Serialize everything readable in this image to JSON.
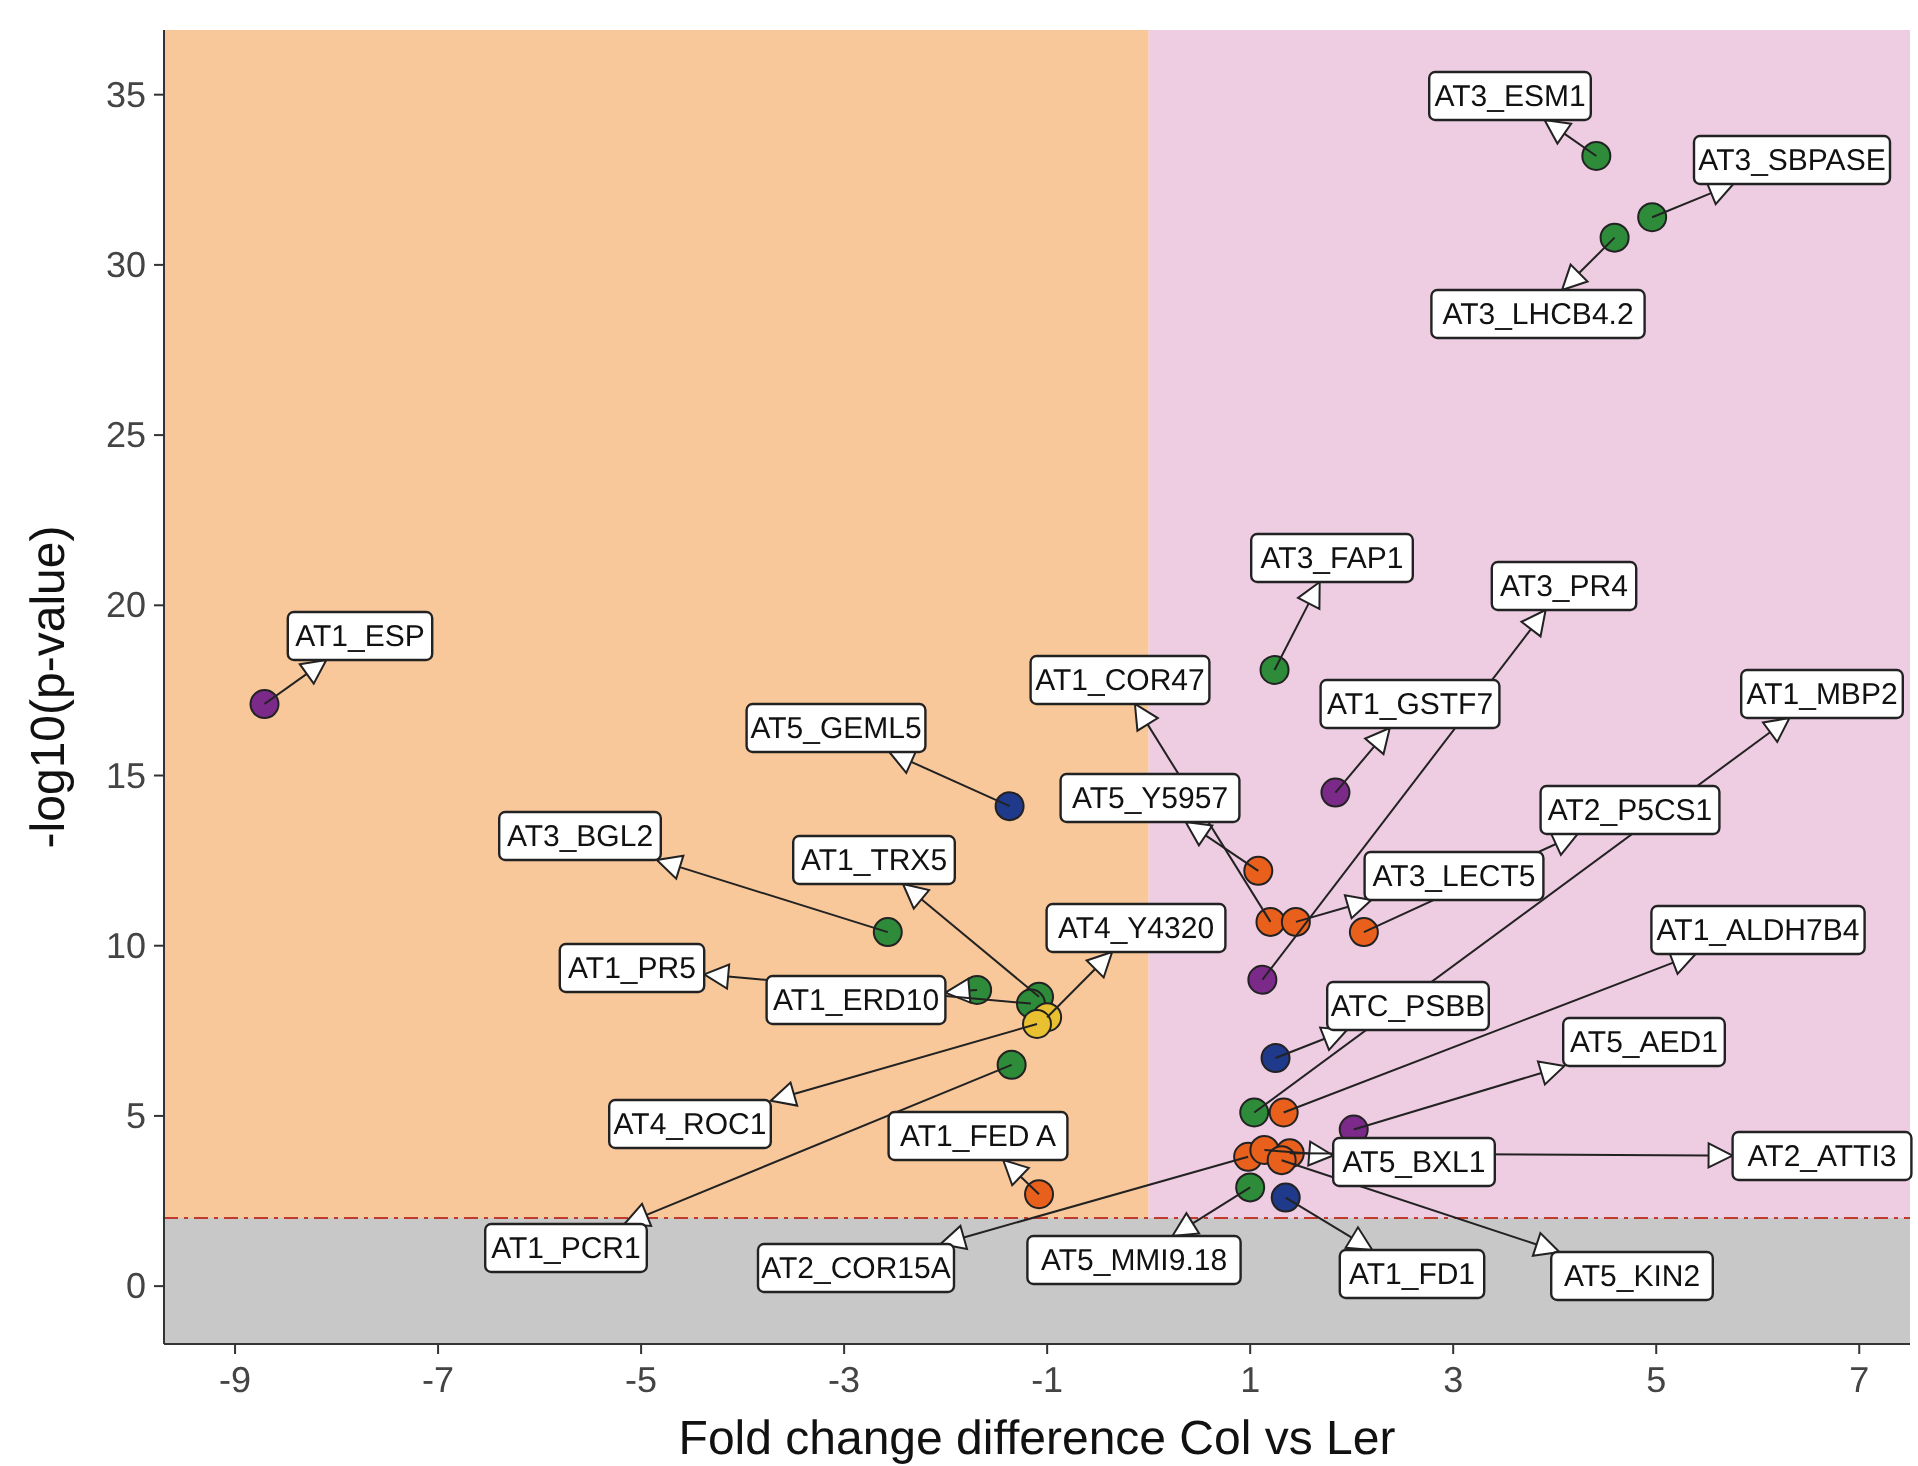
{
  "chart_data": {
    "type": "scatter",
    "xlabel": "Fold change difference Col vs Ler",
    "ylabel": "-log10(p-value)",
    "xlim": [
      -9.7,
      7.5
    ],
    "ylim": [
      -1.7,
      36.9
    ],
    "xticks": [
      -9,
      -7,
      -5,
      -3,
      -1,
      1,
      3,
      5,
      7
    ],
    "yticks": [
      0,
      5,
      10,
      15,
      20,
      25,
      30,
      35
    ],
    "grid": false,
    "marker": "circle",
    "bands": [
      {
        "axis": "x",
        "from": -9.7,
        "to": 0,
        "color": "#f9c89a"
      },
      {
        "axis": "x",
        "from": 0,
        "to": 7.5,
        "color": "#eecce2"
      },
      {
        "axis": "y",
        "from": -1.7,
        "to": 2,
        "color": "#c8c8c8"
      }
    ],
    "ref_lines": [
      {
        "axis": "y",
        "value": 2,
        "color": "#c0392b",
        "line_style": "dashed"
      }
    ],
    "series": [
      {
        "color": "#2e8b3a",
        "x": [
          4.41,
          4.96,
          4.59,
          1.24,
          1.04,
          1.0,
          -2.57,
          -1.69,
          -1.08,
          -1.16,
          -1.35
        ],
        "values": [
          33.2,
          31.4,
          30.8,
          18.1,
          5.1,
          2.9,
          10.4,
          8.7,
          8.5,
          8.3,
          6.5
        ]
      },
      {
        "color": "#7b2a8a",
        "x": [
          -8.71,
          1.84,
          1.12,
          2.02
        ],
        "values": [
          17.1,
          14.5,
          9.0,
          4.6
        ]
      },
      {
        "color": "#1f3a8a",
        "x": [
          -1.37,
          1.25,
          1.35
        ],
        "values": [
          14.1,
          6.7,
          2.6
        ]
      },
      {
        "color": "#e8601c",
        "x": [
          1.08,
          1.2,
          1.45,
          2.12,
          1.33,
          0.98,
          1.14,
          1.39,
          1.31,
          -1.08
        ],
        "values": [
          12.2,
          10.7,
          10.7,
          10.4,
          5.1,
          3.8,
          4.0,
          3.9,
          3.7,
          2.7
        ]
      },
      {
        "color": "#e8c030",
        "x": [
          -1.0,
          -1.1
        ],
        "values": [
          7.9,
          7.7
        ]
      }
    ],
    "annotations": [
      {
        "text": "AT3_ESM1",
        "x": 4.41,
        "y": 33.2
      },
      {
        "text": "AT3_SBPASE",
        "x": 4.96,
        "y": 31.4
      },
      {
        "text": "AT3_LHCB4.2",
        "x": 4.59,
        "y": 30.8
      },
      {
        "text": "AT3_FAP1",
        "x": 1.24,
        "y": 18.1
      },
      {
        "text": "AT1_MBP2",
        "x": 1.04,
        "y": 5.1
      },
      {
        "text": "AT5_MMI9.18",
        "x": 1.0,
        "y": 2.9
      },
      {
        "text": "AT3_BGL2",
        "x": -2.57,
        "y": 10.4
      },
      {
        "text": "AT1_ERD10",
        "x": -1.69,
        "y": 8.7
      },
      {
        "text": "AT1_TRX5",
        "x": -1.08,
        "y": 8.5
      },
      {
        "text": "AT1_PR5",
        "x": -1.16,
        "y": 8.3
      },
      {
        "text": "AT1_PCR1",
        "x": -1.35,
        "y": 6.5
      },
      {
        "text": "AT1_ESP",
        "x": -8.71,
        "y": 17.1
      },
      {
        "text": "AT1_GSTF7",
        "x": 1.84,
        "y": 14.5
      },
      {
        "text": "AT3_PR4",
        "x": 1.12,
        "y": 9.0
      },
      {
        "text": "AT5_AED1",
        "x": 2.02,
        "y": 4.6
      },
      {
        "text": "AT5_GEML5",
        "x": -1.37,
        "y": 14.1
      },
      {
        "text": "ATC_PSBB",
        "x": 1.25,
        "y": 6.7
      },
      {
        "text": "AT1_FD1",
        "x": 1.35,
        "y": 2.6
      },
      {
        "text": "AT5_Y5957",
        "x": 1.08,
        "y": 12.2
      },
      {
        "text": "AT1_COR47",
        "x": 1.2,
        "y": 10.7
      },
      {
        "text": "AT3_LECT5",
        "x": 1.45,
        "y": 10.7
      },
      {
        "text": "AT2_P5CS1",
        "x": 2.12,
        "y": 10.4
      },
      {
        "text": "AT1_ALDH7B4",
        "x": 1.33,
        "y": 5.1
      },
      {
        "text": "AT2_COR15A",
        "x": 0.98,
        "y": 3.8
      },
      {
        "text": "AT5_BXL1",
        "x": 1.14,
        "y": 4.0
      },
      {
        "text": "AT2_ATTI3",
        "x": 1.39,
        "y": 3.9
      },
      {
        "text": "AT5_KIN2",
        "x": 1.31,
        "y": 3.7
      },
      {
        "text": "AT1_FED A",
        "x": -1.08,
        "y": 2.7
      },
      {
        "text": "AT4_Y4320",
        "x": -1.0,
        "y": 7.9
      },
      {
        "text": "AT4_ROC1",
        "x": -1.1,
        "y": 7.7
      }
    ]
  }
}
